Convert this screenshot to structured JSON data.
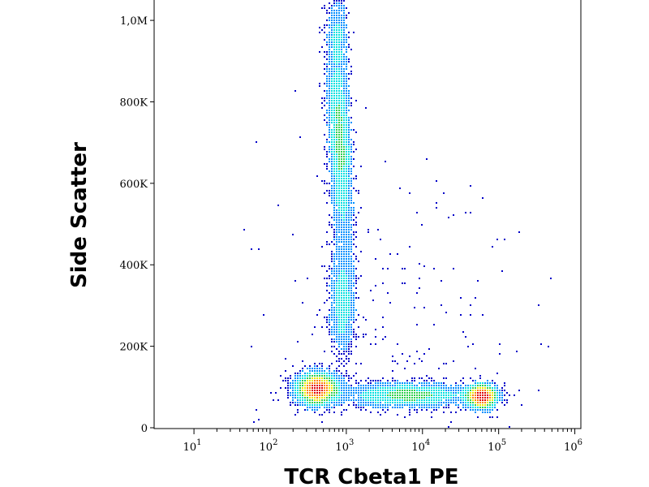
{
  "chart_data": {
    "type": "scatter",
    "subtype": "flow-cytometry density plot",
    "xlabel": "TCR Cbeta1 PE",
    "ylabel": "Side Scatter",
    "x_scale": "log",
    "xlim": [
      3,
      1200000
    ],
    "ylim": [
      -2000,
      1050000
    ],
    "x_ticks": [
      {
        "base": "10",
        "exp": "1",
        "value": 10
      },
      {
        "base": "10",
        "exp": "2",
        "value": 100
      },
      {
        "base": "10",
        "exp": "3",
        "value": 1000
      },
      {
        "base": "10",
        "exp": "4",
        "value": 10000
      },
      {
        "base": "10",
        "exp": "5",
        "value": 100000
      },
      {
        "base": "10",
        "exp": "6",
        "value": 1000000
      }
    ],
    "y_ticks": [
      {
        "label": "0",
        "value": 0
      },
      {
        "label": "200K",
        "value": 200000
      },
      {
        "label": "400K",
        "value": 400000
      },
      {
        "label": "600K",
        "value": 600000
      },
      {
        "label": "800K",
        "value": 800000
      },
      {
        "label": "1,0M",
        "value": 1000000
      }
    ],
    "grid": false,
    "color_scale": [
      "#0000c8",
      "#0090ff",
      "#00e0e0",
      "#30d050",
      "#e8e800",
      "#ff8000",
      "#e00000"
    ],
    "populations": [
      {
        "x_center": 450,
        "y_center": 95000,
        "density": "high"
      },
      {
        "x_center": 800,
        "y_center": 700000,
        "density": "high"
      },
      {
        "x_center": 900,
        "y_center": 300000,
        "density": "medium"
      },
      {
        "x_center": 8000,
        "y_center": 80000,
        "density": "medium"
      },
      {
        "x_center": 60000,
        "y_center": 75000,
        "density": "high"
      }
    ]
  }
}
